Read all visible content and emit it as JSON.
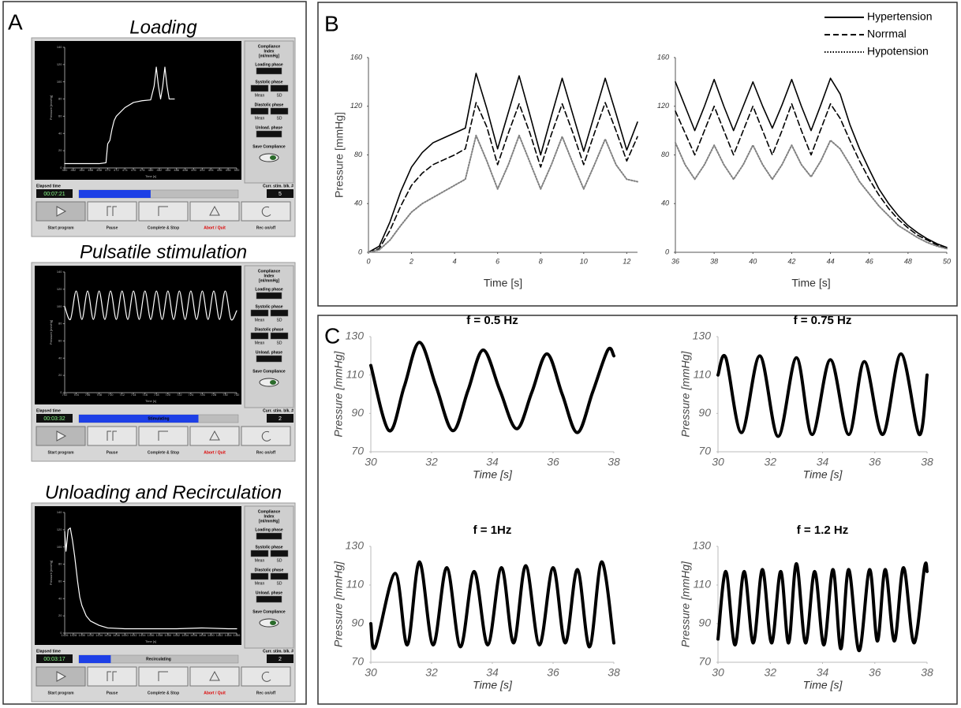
{
  "panel_labels": [
    "A",
    "B",
    "C"
  ],
  "panel_a": {
    "side": {
      "title_lines": [
        "Compliance",
        "Index",
        "[ml/mmHg]"
      ],
      "loading": "Loading phase",
      "systolic": "Systolic phase",
      "diastolic": "Diastolic phase",
      "mean": "Mean",
      "sd": "SD",
      "unload": "Unload. phase",
      "save": "Save Compliance"
    },
    "elapsed_label": "Elapsed time",
    "block_label": "Curr. stim. blk. #",
    "buttons": [
      "Start program",
      "Pause",
      "Complete & Stop",
      "Abort / Quit",
      "Rec on/off"
    ],
    "screens": [
      {
        "title": "Loading",
        "elapsed": "00:07:21",
        "block": "5",
        "progress": 45
      },
      {
        "title": "Pulsatile stimulation",
        "elapsed": "00:03:32",
        "block": "2",
        "progress": 75,
        "progress_text": "Stimulating"
      },
      {
        "title": "Unloading  and Recirculation",
        "elapsed": "00:03:17",
        "block": "2",
        "progress": 20,
        "progress_text": "Recirculating"
      }
    ]
  },
  "chart_data": [
    {
      "type": "line",
      "xlabel": "Time [s]",
      "ylabel": "Pressure [mmHg]",
      "x": [
        460,
        462,
        464,
        466,
        468,
        469.6,
        470,
        470.5,
        471,
        471.5,
        472,
        473,
        474,
        476,
        478,
        480,
        480.8,
        481.3,
        481.8,
        482.3,
        482.8,
        483.3,
        483.8,
        484.3,
        484.8,
        485.5
      ],
      "series": [
        {
          "color": "#ffffff",
          "values": [
            5,
            5,
            5,
            5,
            5,
            6,
            28,
            32,
            45,
            55,
            60,
            65,
            70,
            76,
            78,
            79,
            95,
            117,
            95,
            80,
            95,
            117,
            95,
            80,
            80,
            80
          ]
        }
      ],
      "xlim": [
        460,
        500
      ],
      "xticks": [
        460,
        462,
        464,
        466,
        468,
        470,
        472,
        474,
        476,
        478,
        480,
        482,
        484,
        486,
        488,
        490,
        492,
        494,
        496,
        498,
        500
      ],
      "ylim": [
        0,
        140
      ],
      "yticks": [
        0,
        20,
        40,
        60,
        80,
        100,
        120,
        140
      ]
    },
    {
      "type": "line",
      "xlabel": "Time [s]",
      "ylabel": "Pressure [mmHg]",
      "smooth": true,
      "x": [
        702,
        703,
        704,
        705,
        706,
        707,
        708,
        709,
        710,
        711,
        712,
        713,
        714,
        715,
        716,
        717,
        718,
        719,
        720,
        721,
        722,
        723,
        724,
        725,
        726,
        727,
        728,
        729,
        730,
        731,
        732
      ],
      "series": [
        {
          "color": "#ffffff",
          "values": [
            100,
            85,
            118,
            85,
            118,
            85,
            118,
            85,
            118,
            85,
            118,
            85,
            118,
            85,
            118,
            85,
            118,
            85,
            118,
            85,
            118,
            85,
            118,
            85,
            118,
            85,
            118,
            85,
            118,
            85,
            95
          ]
        }
      ],
      "xlim": [
        702,
        732
      ],
      "xticks": [
        702,
        704,
        706,
        708,
        710,
        712,
        714,
        716,
        718,
        720,
        722,
        724,
        726,
        728,
        730,
        732
      ],
      "ylim": [
        0,
        140
      ],
      "yticks": [
        0,
        20,
        40,
        60,
        80,
        100,
        120,
        140
      ]
    },
    {
      "type": "line",
      "xlabel": "Time [s]",
      "ylabel": "Pressure [mmHg]",
      "x": [
        1426,
        1426.3,
        1426.8,
        1427.3,
        1427.8,
        1428.3,
        1429,
        1429.5,
        1430,
        1431,
        1432,
        1434,
        1436,
        1440,
        1446,
        1452,
        1458,
        1464,
        1466
      ],
      "series": [
        {
          "color": "#ffffff",
          "values": [
            118,
            95,
            120,
            122,
            108,
            90,
            60,
            42,
            32,
            20,
            14,
            9,
            6,
            5,
            5,
            5,
            6,
            5,
            5
          ]
        }
      ],
      "xlim": [
        1426,
        1466
      ],
      "xticks": [
        1426,
        1428,
        1430,
        1432,
        1434,
        1436,
        1438,
        1440,
        1442,
        1444,
        1446,
        1448,
        1450,
        1452,
        1454,
        1456,
        1458,
        1460,
        1462,
        1464,
        1466
      ],
      "ylim": [
        0,
        140
      ],
      "yticks": [
        0,
        20,
        40,
        60,
        80,
        100,
        120,
        140
      ]
    },
    {
      "type": "line",
      "xlabel": "Time [s]",
      "ylabel": "Pressure [mmHg]",
      "legend": "upper right",
      "x": [
        0,
        0.5,
        1,
        1.5,
        2,
        2.5,
        3,
        3.5,
        4,
        4.5,
        5,
        5.5,
        6,
        6.5,
        7,
        7.5,
        8,
        8.5,
        9,
        9.5,
        10,
        10.5,
        11,
        11.5,
        12,
        12.5
      ],
      "series": [
        {
          "name": "Hypertension",
          "color": "#000000",
          "linestyle": "solid",
          "values": [
            0,
            5,
            25,
            50,
            70,
            82,
            90,
            94,
            98,
            102,
            147,
            118,
            85,
            115,
            145,
            113,
            80,
            112,
            143,
            113,
            83,
            113,
            143,
            114,
            84,
            107
          ]
        },
        {
          "name": "Norrmal",
          "color": "#000000",
          "linestyle": "dashed",
          "values": [
            0,
            3,
            18,
            38,
            55,
            65,
            72,
            76,
            80,
            85,
            123,
            103,
            72,
            98,
            122,
            98,
            70,
            97,
            122,
            98,
            72,
            98,
            123,
            100,
            75,
            95
          ]
        },
        {
          "name": "Hypotension",
          "color": "#808080",
          "linestyle": "dotted",
          "values": [
            0,
            2,
            10,
            22,
            33,
            40,
            45,
            50,
            55,
            60,
            96,
            75,
            52,
            72,
            96,
            74,
            52,
            72,
            95,
            73,
            52,
            72,
            93,
            72,
            60,
            58
          ]
        }
      ],
      "xlim": [
        0,
        12.5
      ],
      "xticks": [
        0,
        2,
        4,
        6,
        8,
        10,
        12
      ],
      "ylim": [
        0,
        160
      ],
      "yticks": [
        0,
        40,
        80,
        120,
        160
      ]
    },
    {
      "type": "line",
      "xlabel": "Time [s]",
      "x": [
        36,
        36.5,
        37,
        37.5,
        38,
        38.5,
        39,
        39.5,
        40,
        40.5,
        41,
        41.5,
        42,
        42.5,
        43,
        43.5,
        44,
        44.5,
        45,
        45.5,
        46,
        46.5,
        47,
        47.5,
        48,
        48.5,
        49,
        49.5,
        50
      ],
      "series": [
        {
          "color": "#000000",
          "linestyle": "solid",
          "values": [
            140,
            120,
            100,
            120,
            142,
            120,
            100,
            120,
            140,
            120,
            102,
            121,
            142,
            120,
            100,
            121,
            143,
            130,
            105,
            85,
            68,
            52,
            40,
            30,
            22,
            16,
            11,
            7,
            4
          ]
        },
        {
          "color": "#000000",
          "linestyle": "dashed",
          "values": [
            116,
            98,
            80,
            100,
            120,
            100,
            80,
            100,
            120,
            100,
            80,
            100,
            122,
            100,
            80,
            101,
            122,
            110,
            92,
            75,
            60,
            47,
            36,
            27,
            20,
            14,
            10,
            6,
            3
          ]
        },
        {
          "color": "#808080",
          "linestyle": "dotted",
          "values": [
            90,
            72,
            60,
            72,
            88,
            72,
            60,
            72,
            88,
            72,
            60,
            72,
            88,
            72,
            62,
            75,
            92,
            85,
            72,
            58,
            48,
            38,
            30,
            22,
            17,
            12,
            8,
            5,
            3
          ]
        }
      ],
      "xlim": [
        36,
        50
      ],
      "xticks": [
        36,
        38,
        40,
        42,
        44,
        46,
        48,
        50
      ],
      "ylim": [
        0,
        160
      ],
      "yticks": [
        0,
        40,
        80,
        120,
        160
      ]
    },
    {
      "type": "line",
      "title": "f = 0.5 Hz",
      "xlabel": "Time [s]",
      "ylabel": "Pressure [mmHg]",
      "smooth": true,
      "x": [
        30,
        30.6,
        31.1,
        31.6,
        32.15,
        32.7,
        33.2,
        33.7,
        34.25,
        34.8,
        35.3,
        35.8,
        36.3,
        36.8,
        37.3,
        37.8,
        38
      ],
      "series": [
        {
          "color": "#000000",
          "values": [
            115,
            81,
            104,
            127,
            104,
            81,
            102,
            123,
            102,
            82,
            101,
            121,
            100,
            80,
            101,
            123,
            120
          ]
        }
      ],
      "xlim": [
        30,
        38
      ],
      "xticks": [
        30,
        32,
        34,
        36,
        38
      ],
      "ylim": [
        70,
        130
      ],
      "yticks": [
        70,
        90,
        110,
        130
      ]
    },
    {
      "type": "line",
      "title": "f = 0.75 Hz",
      "xlabel": "Time [s]",
      "ylabel": "Pressure [mmHg]",
      "smooth": true,
      "x": [
        30,
        30.3,
        30.9,
        31.6,
        32.3,
        33.0,
        33.6,
        34.3,
        35.0,
        35.6,
        36.3,
        37.0,
        37.7,
        38
      ],
      "series": [
        {
          "color": "#000000",
          "values": [
            110,
            119,
            80,
            120,
            78,
            119,
            79,
            118,
            79,
            117,
            79,
            121,
            79,
            110
          ]
        }
      ],
      "xlim": [
        30,
        38
      ],
      "xticks": [
        30,
        32,
        34,
        36,
        38
      ],
      "ylim": [
        70,
        130
      ],
      "yticks": [
        70,
        90,
        110,
        130
      ]
    },
    {
      "type": "line",
      "title": "f = 1Hz",
      "xlabel": "Time [s]",
      "ylabel": "Pressure [mmHg]",
      "smooth": true,
      "x": [
        30,
        30.15,
        30.8,
        31.2,
        31.6,
        32.05,
        32.5,
        32.95,
        33.4,
        33.85,
        34.3,
        34.7,
        35.1,
        35.55,
        36.0,
        36.4,
        36.8,
        37.2,
        37.6,
        38
      ],
      "series": [
        {
          "color": "#000000",
          "values": [
            90,
            78,
            116,
            79,
            122,
            79,
            119,
            78,
            117,
            79,
            119,
            80,
            120,
            79,
            119,
            80,
            118,
            78,
            122,
            80
          ]
        }
      ],
      "xlim": [
        30,
        38
      ],
      "xticks": [
        30,
        32,
        34,
        36,
        38
      ],
      "ylim": [
        70,
        130
      ],
      "yticks": [
        70,
        90,
        110,
        130
      ]
    },
    {
      "type": "line",
      "title": "f = 1.2 Hz",
      "xlabel": "Time [s]",
      "ylabel": "Pressure [mmHg]",
      "smooth": true,
      "x": [
        30,
        30.3,
        30.65,
        31.0,
        31.35,
        31.7,
        32.05,
        32.4,
        32.7,
        33.0,
        33.35,
        33.7,
        34.05,
        34.4,
        34.7,
        35.0,
        35.4,
        35.8,
        36.1,
        36.4,
        36.75,
        37.1,
        37.5,
        37.9,
        38
      ],
      "series": [
        {
          "color": "#000000",
          "values": [
            82,
            117,
            79,
            117,
            80,
            118,
            80,
            117,
            80,
            121,
            80,
            117,
            79,
            118,
            77,
            118,
            76,
            118,
            81,
            118,
            81,
            119,
            80,
            119,
            117
          ]
        }
      ],
      "xlim": [
        30,
        38
      ],
      "xticks": [
        30,
        32,
        34,
        36,
        38
      ],
      "ylim": [
        70,
        130
      ],
      "yticks": [
        70,
        90,
        110,
        130
      ]
    }
  ]
}
